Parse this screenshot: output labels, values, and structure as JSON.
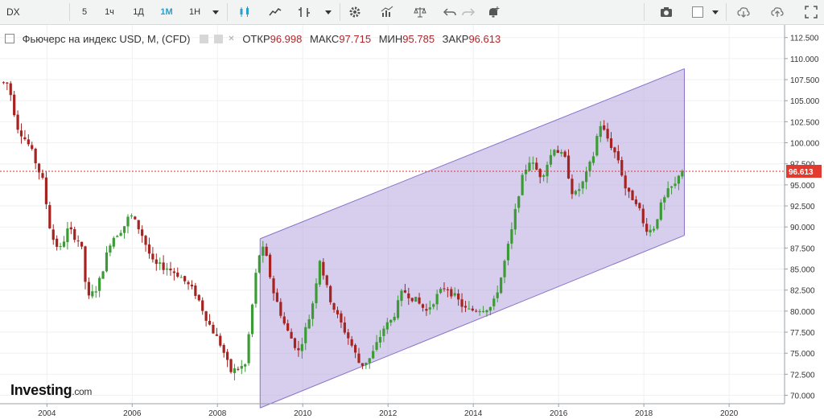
{
  "toolbar": {
    "symbol": "DX",
    "intervals": [
      "5",
      "1ч",
      "1Д",
      "1М",
      "1Н"
    ],
    "active_interval": "1М",
    "icons": [
      "dropdown-icon",
      "candlestick-icon",
      "line-chart-icon",
      "bar-chart-icon",
      "dropdown-icon",
      "gear-icon",
      "indicators-icon",
      "balance-icon",
      "undo-icon",
      "redo-icon",
      "alert-icon",
      "camera-icon",
      "color-square-icon",
      "dropdown-icon",
      "cloud-download-icon",
      "cloud-upload-icon",
      "fullscreen-icon"
    ]
  },
  "legend": {
    "title": "Фьючерс на индекс USD, M, (CFD)",
    "open_label": "ОТКР",
    "open_value": "96.998",
    "high_label": "МАКС",
    "high_value": "97.715",
    "low_label": "МИН",
    "low_value": "95.785",
    "close_label": "ЗАКР",
    "close_value": "96.613"
  },
  "logo": {
    "name": "Investing",
    "domain": ".com"
  },
  "colors": {
    "up": "#3d9b37",
    "down": "#a52320",
    "channel_fill": "#b6a6de",
    "channel_line": "#8a72c8",
    "price_line": "#e03030",
    "price_badge": "#e23a2e"
  },
  "chart_data": {
    "type": "candlestick",
    "title": "Фьючерс на индекс USD, M, (CFD)",
    "xlabel": "",
    "ylabel": "",
    "x_ticks": [
      "2004",
      "2006",
      "2008",
      "2010",
      "2012",
      "2014",
      "2016",
      "2018",
      "2020"
    ],
    "y_ticks": [
      "70.000",
      "72.500",
      "75.000",
      "77.500",
      "80.000",
      "82.500",
      "85.000",
      "87.500",
      "90.000",
      "92.500",
      "95.000",
      "97.500",
      "100.000",
      "102.500",
      "105.000",
      "107.500",
      "110.000",
      "112.500"
    ],
    "ylim": [
      69.0,
      114.0
    ],
    "xlim": [
      2002.9,
      2021.3
    ],
    "grid": true,
    "last_price": "96.613",
    "last_price_value": 96.613,
    "price_path": [
      [
        2002.9,
        107.2
      ],
      [
        2003.1,
        107.0
      ],
      [
        2003.3,
        102.0
      ],
      [
        2003.6,
        99.5
      ],
      [
        2003.9,
        95.5
      ],
      [
        2004.1,
        89.0
      ],
      [
        2004.3,
        87.2
      ],
      [
        2004.5,
        89.8
      ],
      [
        2004.8,
        88.0
      ],
      [
        2004.95,
        81.3
      ],
      [
        2005.2,
        83.0
      ],
      [
        2005.5,
        88.5
      ],
      [
        2005.8,
        90.0
      ],
      [
        2005.95,
        91.5
      ],
      [
        2006.2,
        89.5
      ],
      [
        2006.5,
        85.5
      ],
      [
        2006.8,
        85.2
      ],
      [
        2007.1,
        84.3
      ],
      [
        2007.5,
        82.0
      ],
      [
        2007.8,
        78.5
      ],
      [
        2008.1,
        75.8
      ],
      [
        2008.3,
        72.8
      ],
      [
        2008.5,
        73.2
      ],
      [
        2008.65,
        73.6
      ],
      [
        2008.8,
        80.0
      ],
      [
        2008.95,
        86.5
      ],
      [
        2009.1,
        87.5
      ],
      [
        2009.3,
        82.5
      ],
      [
        2009.6,
        78.0
      ],
      [
        2009.9,
        75.2
      ],
      [
        2010.2,
        80.0
      ],
      [
        2010.4,
        86.2
      ],
      [
        2010.6,
        82.0
      ],
      [
        2010.8,
        79.5
      ],
      [
        2011.1,
        76.5
      ],
      [
        2011.35,
        73.5
      ],
      [
        2011.6,
        74.5
      ],
      [
        2011.9,
        78.0
      ],
      [
        2012.1,
        79.0
      ],
      [
        2012.35,
        82.5
      ],
      [
        2012.6,
        81.5
      ],
      [
        2012.9,
        80.0
      ],
      [
        2013.1,
        81.5
      ],
      [
        2013.35,
        83.0
      ],
      [
        2013.6,
        81.5
      ],
      [
        2013.85,
        80.0
      ],
      [
        2014.15,
        80.3
      ],
      [
        2014.45,
        80.5
      ],
      [
        2014.65,
        84.0
      ],
      [
        2014.9,
        89.5
      ],
      [
        2015.1,
        95.0
      ],
      [
        2015.3,
        98.0
      ],
      [
        2015.6,
        96.0
      ],
      [
        2015.9,
        99.5
      ],
      [
        2016.15,
        98.0
      ],
      [
        2016.35,
        93.5
      ],
      [
        2016.6,
        95.5
      ],
      [
        2016.85,
        99.0
      ],
      [
        2016.95,
        102.5
      ],
      [
        2017.15,
        100.5
      ],
      [
        2017.4,
        98.0
      ],
      [
        2017.6,
        94.0
      ],
      [
        2017.85,
        93.0
      ],
      [
        2018.0,
        90.0
      ],
      [
        2018.2,
        89.5
      ],
      [
        2018.4,
        92.5
      ],
      [
        2018.6,
        94.5
      ],
      [
        2018.75,
        95.0
      ],
      [
        2018.85,
        97.0
      ],
      [
        2018.95,
        96.6
      ]
    ],
    "channel": {
      "lower_start": [
        2009.0,
        68.5
      ],
      "lower_end": [
        2018.95,
        89.0
      ],
      "upper_start": [
        2009.0,
        88.6
      ],
      "upper_end": [
        2018.95,
        108.8
      ]
    }
  }
}
